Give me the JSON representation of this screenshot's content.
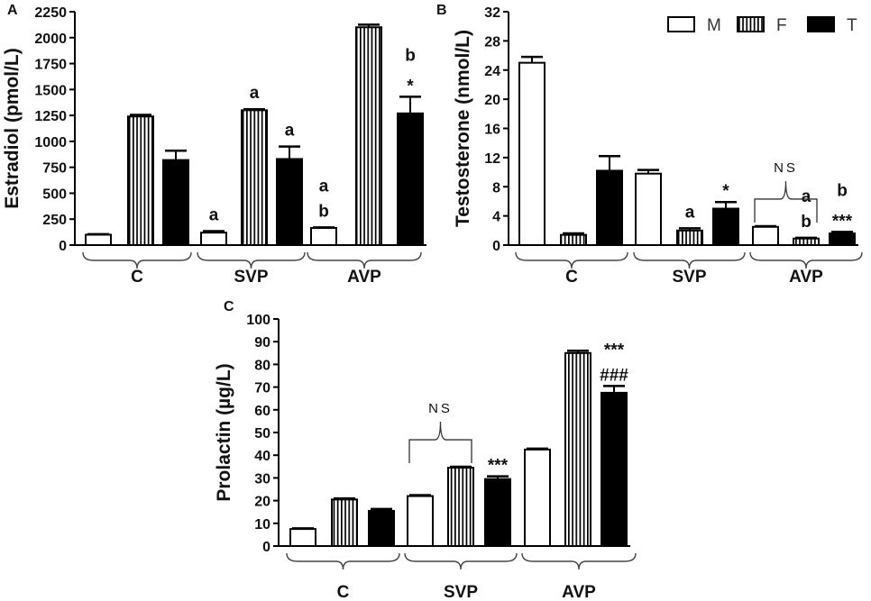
{
  "legend": {
    "entries": [
      {
        "label": "M",
        "pattern": "white"
      },
      {
        "label": "F",
        "pattern": "stripes"
      },
      {
        "label": "T",
        "pattern": "black"
      }
    ]
  },
  "chart_data": [
    {
      "panel": "A",
      "type": "bar",
      "ylabel": "Estradiol (pmol/L)",
      "ylim": [
        0,
        2250
      ],
      "yticks": [
        0,
        250,
        500,
        750,
        1000,
        1250,
        1500,
        1750,
        2000,
        2250
      ],
      "categories": [
        "C",
        "SVP",
        "AVP"
      ],
      "series": [
        {
          "name": "M",
          "values": [
            100,
            120,
            165
          ],
          "errors": [
            5,
            15,
            5
          ]
        },
        {
          "name": "F",
          "values": [
            1240,
            1300,
            2100
          ],
          "errors": [
            15,
            10,
            25
          ]
        },
        {
          "name": "T",
          "values": [
            820,
            830,
            1270
          ],
          "errors": [
            90,
            120,
            160
          ]
        }
      ],
      "annotations": [
        {
          "category": "SVP",
          "series": "M",
          "lines": [
            "a"
          ]
        },
        {
          "category": "SVP",
          "series": "F",
          "lines": [
            "a"
          ]
        },
        {
          "category": "SVP",
          "series": "T",
          "lines": [
            "a"
          ]
        },
        {
          "category": "AVP",
          "series": "M",
          "lines": [
            "a",
            "b"
          ]
        },
        {
          "category": "AVP",
          "series": "T",
          "lines": [
            "b",
            "*"
          ]
        }
      ]
    },
    {
      "panel": "B",
      "type": "bar",
      "ylabel": "Testosterone (nmol/L)",
      "ylim": [
        0,
        32
      ],
      "yticks": [
        0,
        4,
        8,
        12,
        16,
        20,
        24,
        28,
        32
      ],
      "categories": [
        "C",
        "SVP",
        "AVP"
      ],
      "series": [
        {
          "name": "M",
          "values": [
            25.0,
            9.8,
            2.5
          ],
          "errors": [
            0.8,
            0.5,
            0.1
          ]
        },
        {
          "name": "F",
          "values": [
            1.4,
            2.0,
            0.9
          ],
          "errors": [
            0.2,
            0.3,
            0.1
          ]
        },
        {
          "name": "T",
          "values": [
            10.2,
            5.0,
            1.6
          ],
          "errors": [
            2.0,
            0.9,
            0.2
          ]
        }
      ],
      "annotations": [
        {
          "category": "SVP",
          "series": "F",
          "lines": [
            "a"
          ]
        },
        {
          "category": "SVP",
          "series": "T",
          "lines": [
            "*"
          ]
        },
        {
          "category": "AVP",
          "series": "F",
          "lines": [
            "a",
            "b"
          ]
        },
        {
          "category": "AVP",
          "series": "T",
          "lines": [
            "b",
            "***"
          ]
        }
      ],
      "bracket": {
        "category": "AVP",
        "label": "NS"
      }
    },
    {
      "panel": "C",
      "type": "bar",
      "ylabel": "Prolactin (µg/L)",
      "ylim": [
        0,
        100
      ],
      "yticks": [
        0,
        10,
        20,
        30,
        40,
        50,
        60,
        70,
        80,
        90,
        100
      ],
      "categories": [
        "C",
        "SVP",
        "AVP"
      ],
      "series": [
        {
          "name": "M",
          "values": [
            7.5,
            22.0,
            42.5
          ],
          "errors": [
            0.3,
            0.4,
            0.4
          ]
        },
        {
          "name": "F",
          "values": [
            20.5,
            34.5,
            85.0
          ],
          "errors": [
            0.5,
            0.4,
            1.0
          ]
        },
        {
          "name": "T",
          "values": [
            15.5,
            29.5,
            67.5
          ],
          "errors": [
            0.8,
            1.2,
            3.0
          ]
        }
      ],
      "annotations": [
        {
          "category": "SVP",
          "series": "T",
          "lines": [
            "***"
          ]
        },
        {
          "category": "AVP",
          "series": "T",
          "lines": [
            "***",
            "###"
          ]
        }
      ],
      "bracket": {
        "category": "SVP",
        "label": "NS"
      }
    }
  ]
}
